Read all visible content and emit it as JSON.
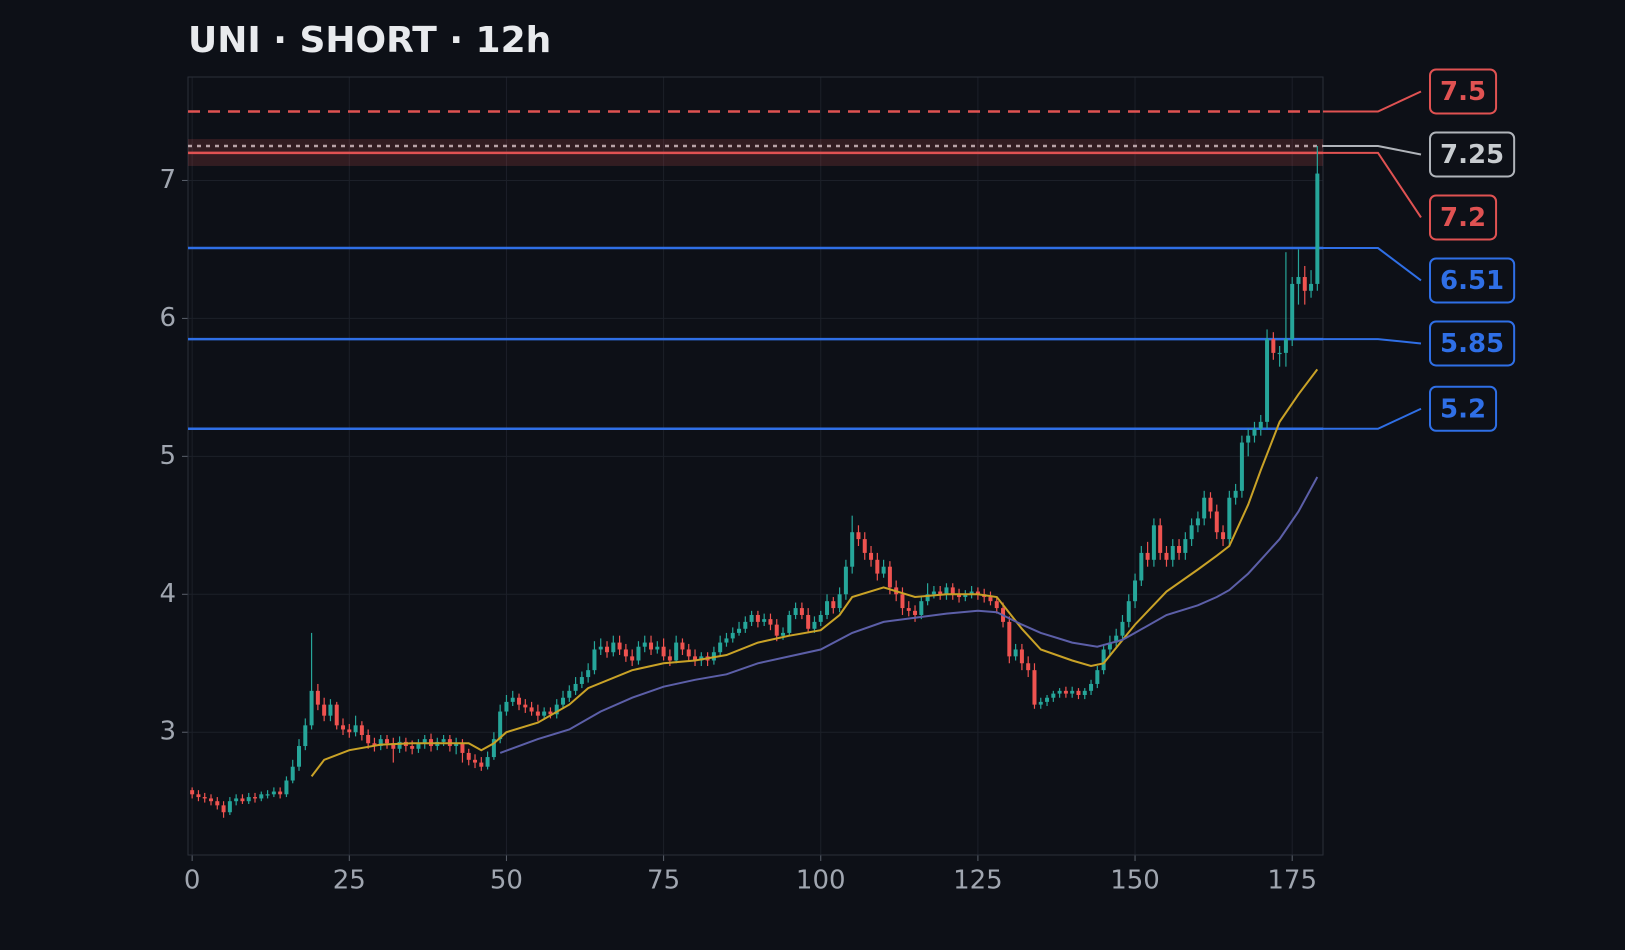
{
  "chart_data": {
    "type": "candlestick",
    "title": "UNI · SHORT · 12h",
    "up_color": "#26a69a",
    "down_color": "#ef5350",
    "open": [
      2.58,
      2.55,
      2.53,
      2.52,
      2.5,
      2.47,
      2.42,
      2.5,
      2.52,
      2.5,
      2.53,
      2.52,
      2.55,
      2.55,
      2.57,
      2.55,
      2.65,
      2.75,
      2.9,
      3.05,
      3.3,
      3.2,
      3.12,
      3.2,
      3.05,
      3.02,
      3.0,
      3.05,
      2.98,
      2.92,
      2.9,
      2.95,
      2.92,
      2.88,
      2.93,
      2.9,
      2.88,
      2.92,
      2.95,
      2.9,
      2.93,
      2.95,
      2.9,
      2.92,
      2.85,
      2.8,
      2.78,
      2.75,
      2.82,
      2.95,
      3.15,
      3.22,
      3.25,
      3.2,
      3.18,
      3.15,
      3.12,
      3.15,
      3.13,
      3.2,
      3.25,
      3.3,
      3.35,
      3.4,
      3.45,
      3.6,
      3.62,
      3.58,
      3.65,
      3.6,
      3.55,
      3.52,
      3.62,
      3.65,
      3.6,
      3.62,
      3.55,
      3.52,
      3.65,
      3.6,
      3.55,
      3.52,
      3.55,
      3.52,
      3.58,
      3.65,
      3.68,
      3.72,
      3.75,
      3.8,
      3.85,
      3.8,
      3.82,
      3.78,
      3.7,
      3.72,
      3.85,
      3.9,
      3.85,
      3.75,
      3.8,
      3.85,
      3.95,
      3.9,
      4.0,
      4.2,
      4.45,
      4.4,
      4.3,
      4.25,
      4.15,
      4.2,
      4.05,
      4.0,
      3.9,
      3.88,
      3.85,
      3.95,
      4.0,
      4.02,
      4.0,
      4.05,
      4.0,
      3.98,
      4.0,
      4.02,
      4.0,
      3.98,
      3.95,
      3.9,
      3.8,
      3.55,
      3.6,
      3.5,
      3.45,
      3.2,
      3.22,
      3.25,
      3.28,
      3.3,
      3.28,
      3.3,
      3.27,
      3.3,
      3.35,
      3.45,
      3.6,
      3.65,
      3.7,
      3.8,
      3.95,
      4.1,
      4.3,
      4.25,
      4.5,
      4.3,
      4.25,
      4.35,
      4.3,
      4.4,
      4.5,
      4.55,
      4.7,
      4.6,
      4.45,
      4.4,
      4.7,
      4.75,
      5.1,
      5.15,
      5.2,
      5.25,
      5.85,
      5.75,
      5.75,
      5.85,
      6.25,
      6.3,
      6.2,
      6.25
    ],
    "high": [
      2.6,
      2.58,
      2.56,
      2.55,
      2.53,
      2.5,
      2.53,
      2.55,
      2.55,
      2.56,
      2.56,
      2.57,
      2.58,
      2.6,
      2.6,
      2.68,
      2.8,
      2.95,
      3.1,
      3.72,
      3.35,
      3.25,
      3.24,
      3.22,
      3.1,
      3.06,
      3.12,
      3.08,
      3.02,
      2.96,
      2.98,
      2.98,
      2.96,
      2.97,
      2.96,
      2.94,
      2.95,
      2.98,
      2.99,
      2.96,
      2.98,
      2.98,
      2.96,
      2.95,
      2.88,
      2.84,
      2.82,
      2.86,
      3.0,
      3.2,
      3.27,
      3.3,
      3.28,
      3.24,
      3.22,
      3.2,
      3.18,
      3.18,
      3.24,
      3.3,
      3.34,
      3.4,
      3.44,
      3.5,
      3.66,
      3.68,
      3.66,
      3.7,
      3.7,
      3.64,
      3.6,
      3.66,
      3.7,
      3.7,
      3.66,
      3.68,
      3.6,
      3.7,
      3.68,
      3.64,
      3.6,
      3.58,
      3.58,
      3.62,
      3.7,
      3.72,
      3.76,
      3.8,
      3.84,
      3.88,
      3.88,
      3.86,
      3.86,
      3.82,
      3.76,
      3.88,
      3.94,
      3.94,
      3.9,
      3.84,
      3.88,
      4.0,
      3.98,
      4.05,
      4.25,
      4.57,
      4.5,
      4.45,
      4.35,
      4.3,
      4.25,
      4.24,
      4.1,
      4.05,
      3.95,
      3.92,
      3.98,
      4.08,
      4.06,
      4.06,
      4.08,
      4.08,
      4.04,
      4.03,
      4.06,
      4.05,
      4.04,
      4.02,
      3.98,
      3.94,
      3.84,
      3.64,
      3.64,
      3.55,
      3.5,
      3.25,
      3.27,
      3.3,
      3.32,
      3.33,
      3.33,
      3.32,
      3.32,
      3.38,
      3.48,
      3.64,
      3.7,
      3.75,
      3.85,
      4.0,
      4.15,
      4.35,
      4.38,
      4.55,
      4.55,
      4.35,
      4.4,
      4.4,
      4.45,
      4.55,
      4.6,
      4.75,
      4.74,
      4.65,
      4.5,
      4.75,
      4.8,
      5.15,
      5.2,
      5.25,
      5.3,
      5.92,
      5.9,
      5.8,
      6.48,
      6.3,
      6.5,
      6.38,
      6.35,
      7.25
    ],
    "low": [
      2.52,
      2.5,
      2.49,
      2.47,
      2.44,
      2.38,
      2.4,
      2.47,
      2.48,
      2.48,
      2.49,
      2.5,
      2.52,
      2.53,
      2.52,
      2.53,
      2.63,
      2.72,
      2.87,
      3.02,
      3.16,
      3.08,
      3.08,
      3.02,
      2.98,
      2.96,
      2.97,
      2.94,
      2.88,
      2.86,
      2.87,
      2.88,
      2.78,
      2.85,
      2.86,
      2.84,
      2.85,
      2.88,
      2.86,
      2.87,
      2.9,
      2.86,
      2.84,
      2.78,
      2.76,
      2.74,
      2.72,
      2.73,
      2.8,
      2.92,
      3.12,
      3.19,
      3.16,
      3.14,
      3.12,
      3.08,
      3.09,
      3.1,
      3.1,
      3.17,
      3.22,
      3.27,
      3.32,
      3.36,
      3.42,
      3.56,
      3.54,
      3.55,
      3.56,
      3.51,
      3.48,
      3.49,
      3.58,
      3.56,
      3.57,
      3.52,
      3.48,
      3.5,
      3.56,
      3.51,
      3.48,
      3.48,
      3.48,
      3.49,
      3.55,
      3.62,
      3.65,
      3.7,
      3.72,
      3.77,
      3.76,
      3.77,
      3.74,
      3.66,
      3.67,
      3.7,
      3.82,
      3.82,
      3.72,
      3.72,
      3.77,
      3.82,
      3.86,
      3.87,
      3.96,
      4.15,
      4.35,
      4.25,
      4.2,
      4.1,
      4.12,
      4.0,
      3.95,
      3.85,
      3.84,
      3.8,
      3.82,
      3.92,
      3.97,
      3.96,
      3.96,
      3.96,
      3.94,
      3.95,
      3.97,
      3.96,
      3.94,
      3.92,
      3.86,
      3.76,
      3.5,
      3.52,
      3.45,
      3.4,
      3.17,
      3.17,
      3.19,
      3.22,
      3.25,
      3.25,
      3.25,
      3.24,
      3.24,
      3.27,
      3.32,
      3.42,
      3.56,
      3.62,
      3.66,
      3.76,
      3.9,
      4.06,
      4.2,
      4.2,
      4.25,
      4.2,
      4.2,
      4.25,
      4.25,
      4.35,
      4.45,
      4.5,
      4.55,
      4.4,
      4.35,
      4.35,
      4.65,
      4.7,
      5.0,
      5.1,
      5.15,
      5.2,
      5.7,
      5.65,
      5.65,
      5.8,
      6.1,
      6.1,
      6.15,
      6.2
    ],
    "close": [
      2.55,
      2.53,
      2.52,
      2.5,
      2.47,
      2.42,
      2.5,
      2.52,
      2.5,
      2.53,
      2.52,
      2.55,
      2.55,
      2.57,
      2.55,
      2.65,
      2.75,
      2.9,
      3.05,
      3.3,
      3.2,
      3.12,
      3.2,
      3.05,
      3.02,
      3.0,
      3.05,
      2.98,
      2.92,
      2.9,
      2.95,
      2.92,
      2.88,
      2.93,
      2.9,
      2.88,
      2.92,
      2.95,
      2.9,
      2.93,
      2.95,
      2.9,
      2.92,
      2.85,
      2.8,
      2.78,
      2.75,
      2.82,
      2.95,
      3.15,
      3.22,
      3.25,
      3.2,
      3.18,
      3.15,
      3.12,
      3.15,
      3.13,
      3.2,
      3.25,
      3.3,
      3.35,
      3.4,
      3.45,
      3.6,
      3.62,
      3.58,
      3.65,
      3.6,
      3.55,
      3.52,
      3.62,
      3.65,
      3.6,
      3.62,
      3.55,
      3.52,
      3.65,
      3.6,
      3.55,
      3.52,
      3.55,
      3.52,
      3.58,
      3.65,
      3.68,
      3.72,
      3.75,
      3.8,
      3.85,
      3.8,
      3.82,
      3.78,
      3.7,
      3.72,
      3.85,
      3.9,
      3.85,
      3.75,
      3.8,
      3.85,
      3.95,
      3.9,
      4.0,
      4.2,
      4.45,
      4.4,
      4.3,
      4.25,
      4.15,
      4.2,
      4.05,
      4.0,
      3.9,
      3.88,
      3.85,
      3.95,
      4.0,
      4.02,
      4.0,
      4.05,
      4.0,
      3.98,
      4.0,
      4.02,
      4.0,
      3.98,
      3.95,
      3.9,
      3.8,
      3.55,
      3.6,
      3.5,
      3.45,
      3.2,
      3.22,
      3.25,
      3.28,
      3.3,
      3.28,
      3.3,
      3.27,
      3.3,
      3.35,
      3.45,
      3.6,
      3.65,
      3.7,
      3.8,
      3.95,
      4.1,
      4.3,
      4.25,
      4.5,
      4.3,
      4.25,
      4.35,
      4.3,
      4.4,
      4.5,
      4.55,
      4.7,
      4.6,
      4.45,
      4.4,
      4.7,
      4.75,
      5.1,
      5.15,
      5.2,
      5.25,
      5.85,
      5.75,
      5.75,
      5.85,
      6.25,
      6.3,
      6.2,
      6.25,
      7.05
    ],
    "series": [
      {
        "color": "#c9a227",
        "x": [
          19,
          21,
          25,
          30,
          35,
          44,
          46,
          48,
          50,
          55,
          60,
          63,
          70,
          75,
          80,
          85,
          90,
          95,
          100,
          103,
          105,
          110,
          115,
          120,
          125,
          128,
          132,
          135,
          140,
          143,
          145,
          150,
          155,
          160,
          163,
          165,
          168,
          170,
          173,
          176,
          179
        ],
        "values": [
          2.68,
          2.8,
          2.87,
          2.91,
          2.92,
          2.92,
          2.87,
          2.92,
          3.0,
          3.07,
          3.2,
          3.32,
          3.45,
          3.5,
          3.52,
          3.56,
          3.65,
          3.7,
          3.74,
          3.85,
          3.98,
          4.05,
          3.98,
          4.0,
          4.0,
          3.98,
          3.75,
          3.6,
          3.52,
          3.48,
          3.5,
          3.78,
          4.02,
          4.18,
          4.28,
          4.35,
          4.65,
          4.9,
          5.25,
          5.45,
          5.63
        ]
      },
      {
        "color": "#5c5fa8",
        "x": [
          49,
          55,
          60,
          65,
          70,
          75,
          80,
          85,
          90,
          95,
          100,
          105,
          110,
          115,
          120,
          125,
          128,
          132,
          135,
          140,
          144,
          148,
          150,
          155,
          160,
          163,
          165,
          168,
          170,
          173,
          176,
          179
        ],
        "values": [
          2.85,
          2.95,
          3.02,
          3.15,
          3.25,
          3.33,
          3.38,
          3.42,
          3.5,
          3.55,
          3.6,
          3.72,
          3.8,
          3.83,
          3.86,
          3.88,
          3.87,
          3.78,
          3.72,
          3.65,
          3.62,
          3.67,
          3.72,
          3.85,
          3.92,
          3.98,
          4.03,
          4.15,
          4.25,
          4.4,
          4.6,
          4.85
        ]
      }
    ],
    "levels": [
      {
        "value": 7.5,
        "color": "#e05252",
        "style": "dashed"
      },
      {
        "value": 7.25,
        "color": "#b0b4ba",
        "style": "dotted"
      },
      {
        "value": 7.2,
        "color": "#e05252",
        "style": "solid",
        "zone": [
          7.105,
          7.3
        ]
      },
      {
        "value": 6.51,
        "color": "#2f6fe6",
        "style": "solid"
      },
      {
        "value": 5.85,
        "color": "#2f6fe6",
        "style": "solid"
      },
      {
        "value": 5.2,
        "color": "#2f6fe6",
        "style": "solid"
      }
    ],
    "xlim": [
      -0.66,
      179.9
    ],
    "ylim": [
      2.11,
      7.75
    ],
    "xticks": [
      0,
      25,
      50,
      75,
      100,
      125,
      150,
      175
    ],
    "yticks": [
      3,
      4,
      5,
      6,
      7
    ],
    "grid": true
  }
}
